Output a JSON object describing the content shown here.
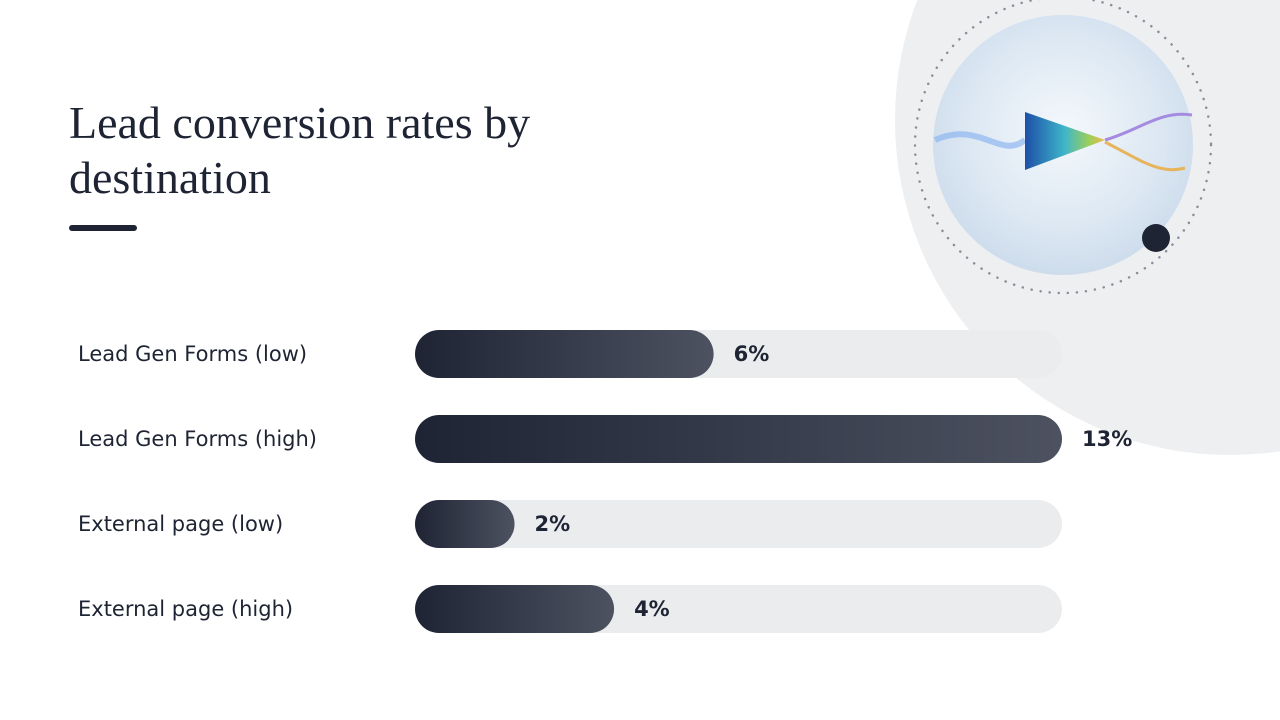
{
  "chart_data": {
    "type": "bar",
    "orientation": "horizontal",
    "title": "Lead conversion rates by destination",
    "categories": [
      "Lead Gen Forms (low)",
      "Lead Gen Forms (high)",
      "External page (low)",
      "External page (high)"
    ],
    "values": [
      6,
      13,
      2,
      4
    ],
    "value_labels": [
      "6%",
      "13%",
      "2%",
      "4%"
    ],
    "color": "#1e2433",
    "track_color": "#ebecee"
  }
}
